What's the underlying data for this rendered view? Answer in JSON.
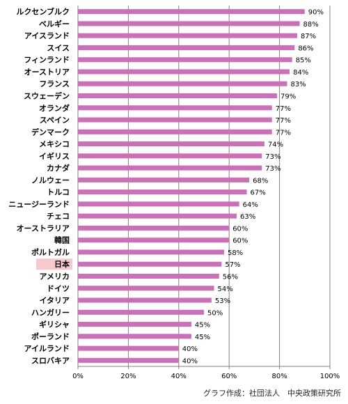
{
  "chart_data": {
    "type": "bar",
    "orientation": "horizontal",
    "categories": [
      "ルクセンブルク",
      "ベルギー",
      "アイスランド",
      "スイス",
      "フィンランド",
      "オーストリア",
      "フランス",
      "スウェーデン",
      "オランダ",
      "スペイン",
      "デンマーク",
      "メキシコ",
      "イギリス",
      "カナダ",
      "ノルウェー",
      "トルコ",
      "ニュージーランド",
      "チェコ",
      "オーストラリア",
      "韓国",
      "ポルトガル",
      "日本",
      "アメリカ",
      "ドイツ",
      "イタリア",
      "ハンガリー",
      "ギリシャ",
      "ポーランド",
      "アイルランド",
      "スロバキア"
    ],
    "values": [
      90,
      88,
      87,
      86,
      85,
      84,
      83,
      79,
      77,
      77,
      77,
      74,
      73,
      73,
      68,
      67,
      64,
      63,
      60,
      60,
      58,
      57,
      56,
      54,
      53,
      50,
      45,
      45,
      40,
      40
    ],
    "value_labels": [
      "90%",
      "88%",
      "87%",
      "86%",
      "85%",
      "84%",
      "83%",
      "79%",
      "77%",
      "77%",
      "77%",
      "74%",
      "73%",
      "73%",
      "68%",
      "67%",
      "64%",
      "63%",
      "60%",
      "60%",
      "58%",
      "57%",
      "56%",
      "54%",
      "53%",
      "50%",
      "45%",
      "45%",
      "40%",
      "40%"
    ],
    "xlim": [
      0,
      100
    ],
    "x_ticks": [
      0,
      20,
      40,
      60,
      80,
      100
    ],
    "x_tick_labels": [
      "0%",
      "20%",
      "40%",
      "60%",
      "80%",
      "100%"
    ],
    "grid": true,
    "highlight_category": "日本",
    "credit": "グラフ作成：社団法人　中央政策研究所"
  },
  "colors": {
    "bar": "#cc6eb8",
    "highlight_bg": "#f7c9cc",
    "grid": "#7f7f7f",
    "axis": "#7f7f7f"
  }
}
